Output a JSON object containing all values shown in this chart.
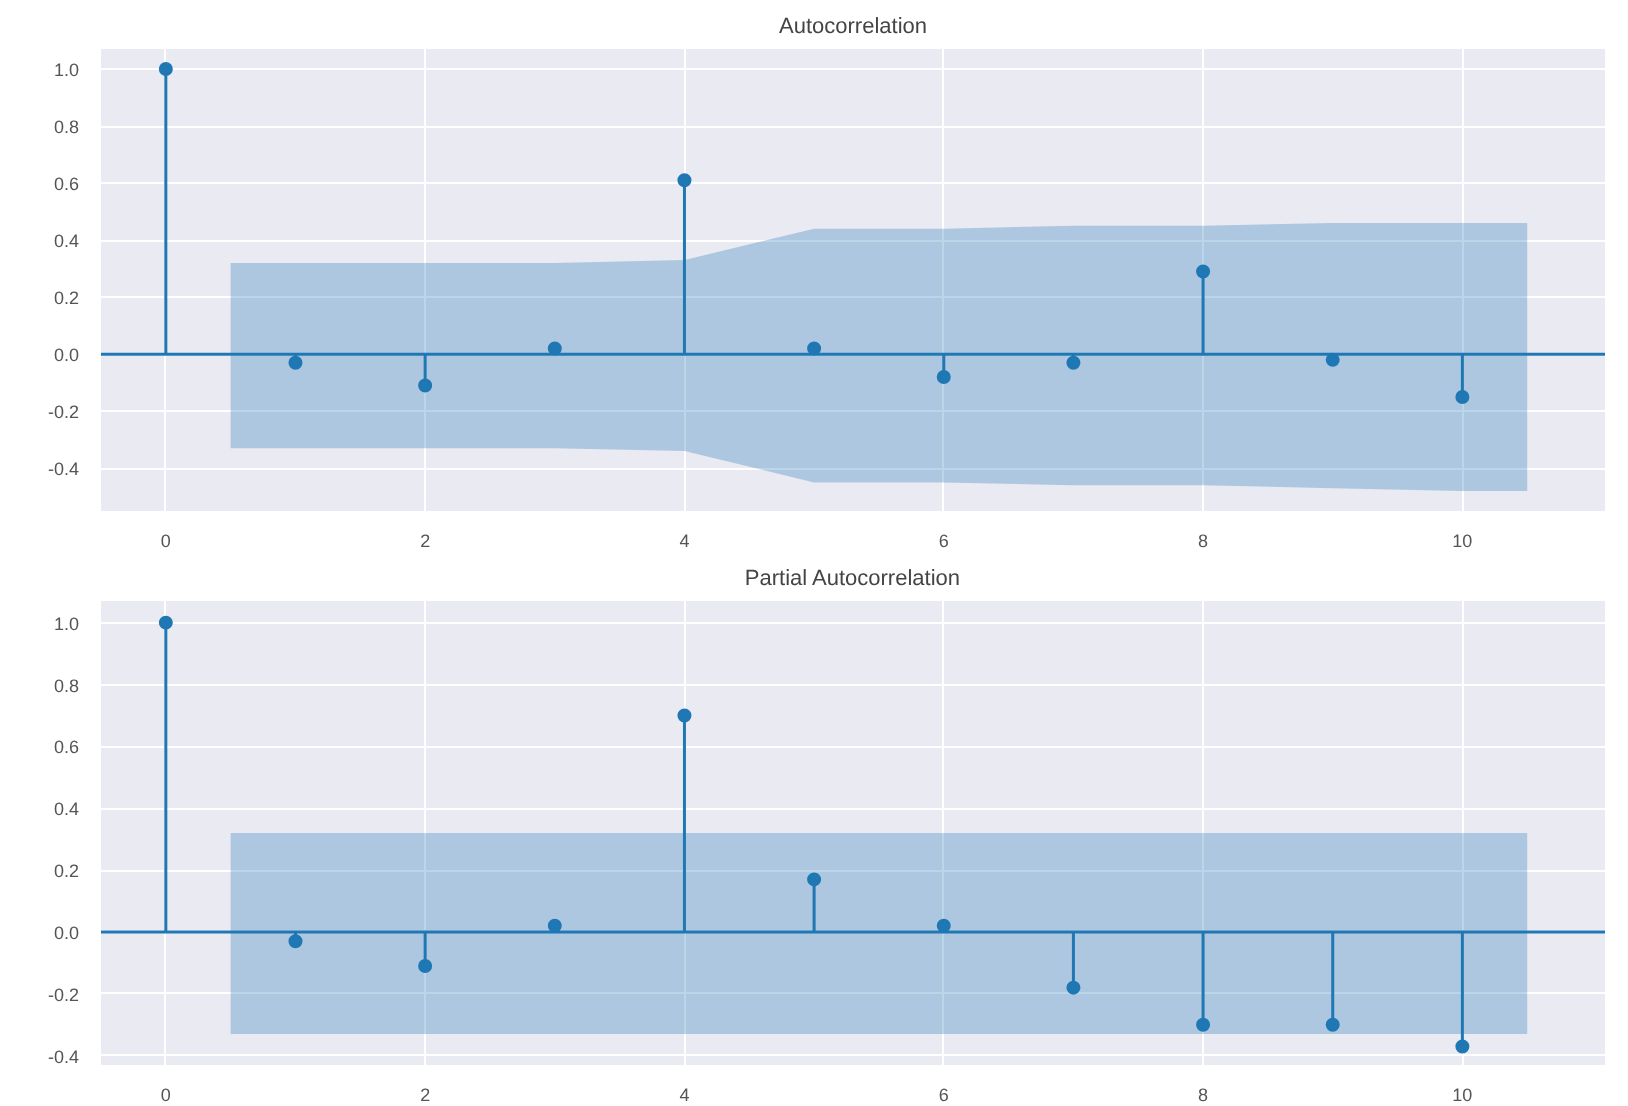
{
  "chart_data": [
    {
      "type": "lollipop",
      "title": "Autocorrelation",
      "x": [
        0,
        1,
        2,
        3,
        4,
        5,
        6,
        7,
        8,
        9,
        10
      ],
      "xlim": [
        -0.5,
        11.1
      ],
      "xticks": [
        0,
        2,
        4,
        6,
        8,
        10
      ],
      "ylim": [
        -0.55,
        1.07
      ],
      "yticks": [
        {
          "value": -0.4,
          "label": "-0.4"
        },
        {
          "value": -0.2,
          "label": "-0.2"
        },
        {
          "value": 0,
          "label": "0.0"
        },
        {
          "value": 0.2,
          "label": "0.2"
        },
        {
          "value": 0.4,
          "label": "0.4"
        },
        {
          "value": 0.6,
          "label": "0.6"
        },
        {
          "value": 0.8,
          "label": "0.8"
        },
        {
          "value": 1,
          "label": "1.0"
        }
      ],
      "grid": true,
      "marker": "circle",
      "series": [
        {
          "color": "#1f77b4",
          "values": [
            1.0,
            -0.03,
            -0.11,
            0.02,
            0.61,
            0.02,
            -0.08,
            -0.03,
            0.29,
            -0.02,
            -0.15
          ]
        },
        {
          "type": "line",
          "color": "#1f77b4",
          "marker": "none",
          "x": [
            -0.5,
            0.5,
            1,
            2,
            3,
            4,
            5,
            6,
            7,
            8,
            9,
            10,
            10.5,
            11.1
          ],
          "values": [
            0,
            0,
            0,
            0,
            0,
            0,
            0,
            0,
            0,
            0,
            0,
            0,
            0,
            0
          ],
          "lower": [
            null,
            -0.33,
            -0.33,
            -0.33,
            -0.33,
            -0.34,
            -0.45,
            -0.45,
            -0.46,
            -0.46,
            -0.47,
            -0.48,
            -0.48,
            null
          ],
          "upper": [
            null,
            0.32,
            0.32,
            0.32,
            0.32,
            0.33,
            0.44,
            0.44,
            0.45,
            0.45,
            0.46,
            0.46,
            0.46,
            null
          ]
        }
      ]
    },
    {
      "type": "lollipop",
      "title": "Partial Autocorrelation",
      "x": [
        0,
        1,
        2,
        3,
        4,
        5,
        6,
        7,
        8,
        9,
        10
      ],
      "xlim": [
        -0.5,
        11.1
      ],
      "xticks": [
        0,
        2,
        4,
        6,
        8,
        10
      ],
      "ylim": [
        -0.43,
        1.07
      ],
      "yticks": [
        {
          "value": -0.4,
          "label": "-0.4"
        },
        {
          "value": -0.2,
          "label": "-0.2"
        },
        {
          "value": 0,
          "label": "0.0"
        },
        {
          "value": 0.2,
          "label": "0.2"
        },
        {
          "value": 0.4,
          "label": "0.4"
        },
        {
          "value": 0.6,
          "label": "0.6"
        },
        {
          "value": 0.8,
          "label": "0.8"
        },
        {
          "value": 1,
          "label": "1.0"
        }
      ],
      "grid": true,
      "marker": "circle",
      "series": [
        {
          "color": "#1f77b4",
          "values": [
            1.0,
            -0.03,
            -0.11,
            0.02,
            0.7,
            0.17,
            0.02,
            -0.18,
            -0.3,
            -0.3,
            -0.37
          ]
        },
        {
          "type": "line",
          "color": "#1f77b4",
          "marker": "none",
          "x": [
            -0.5,
            0.5,
            10.5,
            11.1
          ],
          "values": [
            0,
            0,
            0,
            0
          ],
          "lower": [
            null,
            -0.33,
            -0.33,
            null
          ],
          "upper": [
            null,
            0.32,
            0.32,
            null
          ]
        }
      ]
    }
  ]
}
